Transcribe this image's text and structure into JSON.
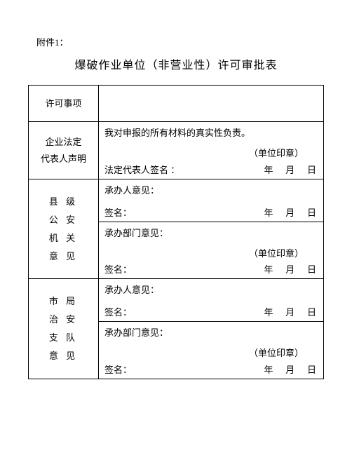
{
  "attachment_label": "附件1：",
  "title": "爆破作业单位（非营业性）许可审批表",
  "row_permit": {
    "label": "许可事项",
    "value": ""
  },
  "row_declare": {
    "label_line1": "企业法定",
    "label_line2": "代表人声明",
    "statement": "我对申报的所有材料的真实性负责。",
    "seal": "（单位印章）",
    "sig_label": "法定代表人签名 ：",
    "date": "年   月   日"
  },
  "row_county": {
    "label_l1": "县 级",
    "label_l2": "公 安",
    "label_l3": "机 关",
    "label_l4": "意 见",
    "block1": {
      "opinion": "承办人意见：",
      "sig_label": "签名：",
      "date": "年   月   日"
    },
    "block2": {
      "opinion": "承办部门意见：",
      "seal": "（单位印章）",
      "sig_label": "签名：",
      "date": "年   月   日"
    }
  },
  "row_city": {
    "label_l1": "市 局",
    "label_l2": "治 安",
    "label_l3": "支 队",
    "label_l4": "意 见",
    "block1": {
      "opinion": "承办人意见：",
      "sig_label": "签名：",
      "date": "年   月   日"
    },
    "block2": {
      "opinion": "承办部门意见：",
      "seal": "（单位印章）",
      "sig_label": "签名：",
      "date": "年   月   日"
    }
  }
}
